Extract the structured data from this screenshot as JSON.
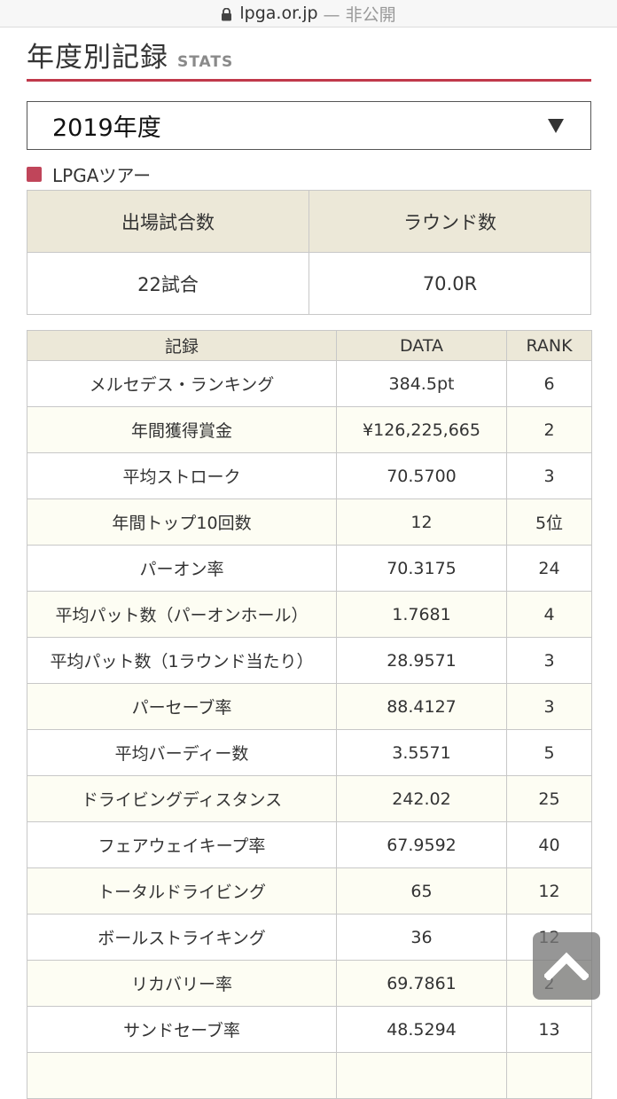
{
  "browser": {
    "domain": "lpga.or.jp",
    "status": "— 非公開"
  },
  "heading": {
    "title": "年度別記録",
    "subtitle": "STATS"
  },
  "year_select": {
    "value": "2019年度"
  },
  "tour": {
    "label": "LPGAツアー",
    "color": "#c0455a"
  },
  "summary": {
    "headers": [
      "出場試合数",
      "ラウンド数"
    ],
    "values": [
      "22試合",
      "70.0R"
    ]
  },
  "stats": {
    "headers": [
      "記録",
      "DATA",
      "RANK"
    ],
    "rows": [
      [
        "メルセデス・ランキング",
        "384.5pt",
        "6"
      ],
      [
        "年間獲得賞金",
        "¥126,225,665",
        "2"
      ],
      [
        "平均ストローク",
        "70.5700",
        "3"
      ],
      [
        "年間トップ10回数",
        "12",
        "5位"
      ],
      [
        "パーオン率",
        "70.3175",
        "24"
      ],
      [
        "平均パット数（パーオンホール）",
        "1.7681",
        "4"
      ],
      [
        "平均パット数（1ラウンド当たり）",
        "28.9571",
        "3"
      ],
      [
        "パーセーブ率",
        "88.4127",
        "3"
      ],
      [
        "平均バーディー数",
        "3.5571",
        "5"
      ],
      [
        "ドライビングディスタンス",
        "242.02",
        "25"
      ],
      [
        "フェアウェイキープ率",
        "67.9592",
        "40"
      ],
      [
        "トータルドライビング",
        "65",
        "12"
      ],
      [
        "ボールストライキング",
        "36",
        "12"
      ],
      [
        "リカバリー率",
        "69.7861",
        "2"
      ],
      [
        "サンドセーブ率",
        "48.5294",
        "13"
      ],
      [
        "",
        "",
        ""
      ]
    ]
  },
  "colors": {
    "accent": "#c0394b",
    "header_bg": "#ece8d8"
  }
}
